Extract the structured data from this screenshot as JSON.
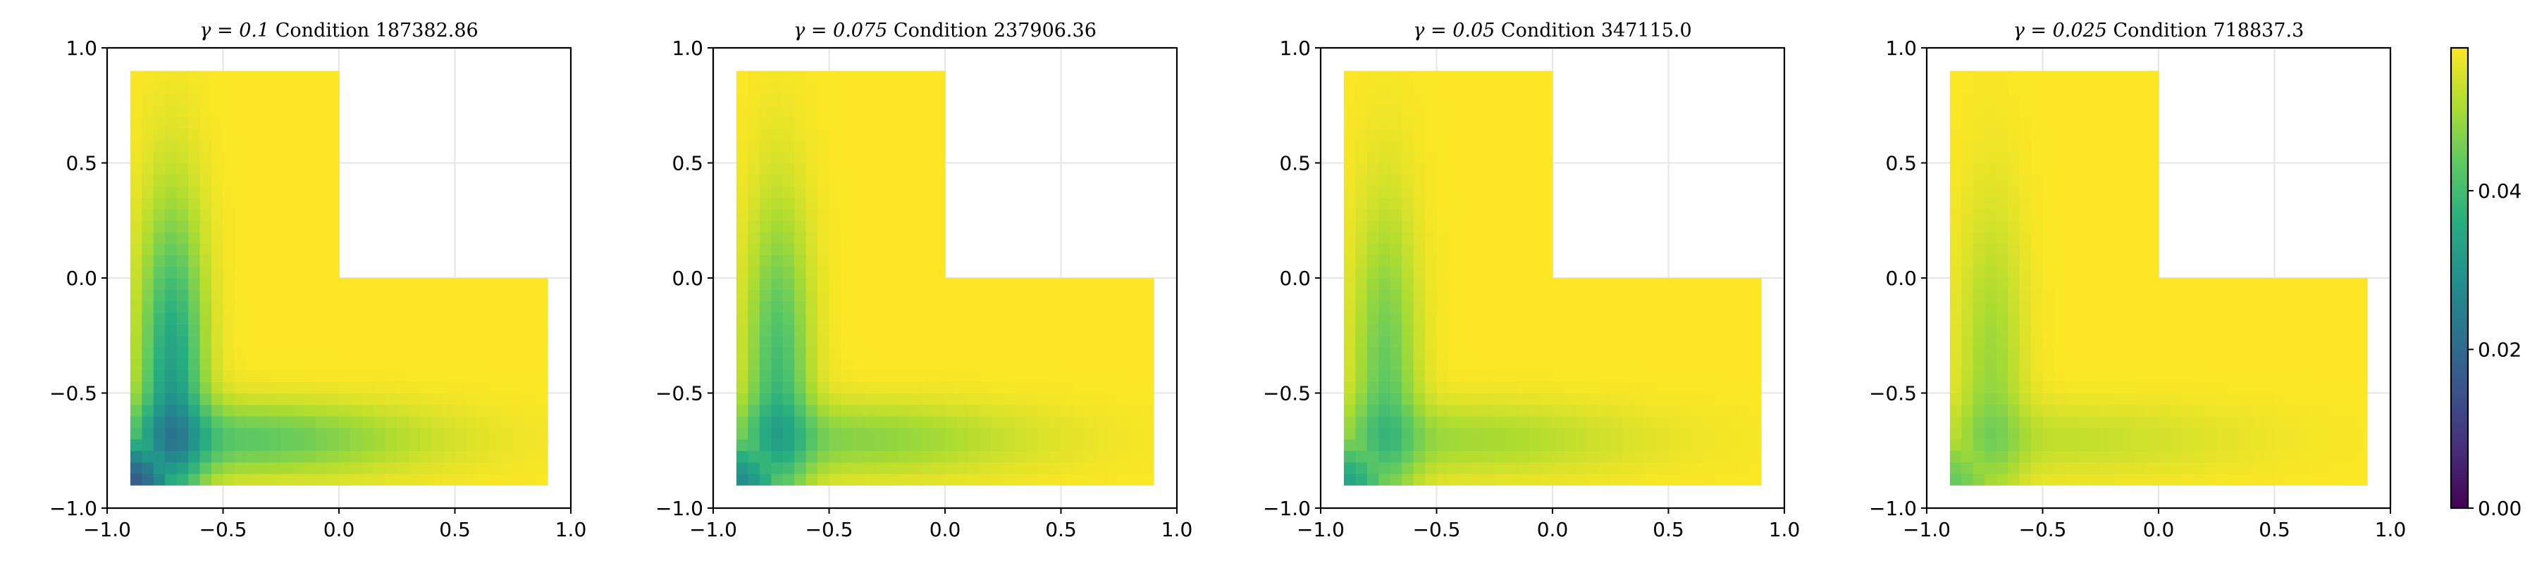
{
  "chart_data": {
    "type": "heatmap",
    "colormap": "viridis",
    "colormap_stops": [
      "#440154",
      "#472d7b",
      "#3b528b",
      "#2c728e",
      "#21918c",
      "#28ae80",
      "#5ec962",
      "#addc30",
      "#fde725"
    ],
    "domain_shape": "L-shaped region: [-0.9,0.9]x[-0.9,0] union [-0.9,0]x[0,0.9]",
    "domain": {
      "lower_rect": {
        "x": [
          -0.9,
          0.9
        ],
        "y": [
          -0.9,
          0.0
        ]
      },
      "upper_rect": {
        "x": [
          -0.9,
          0.0
        ],
        "y": [
          0.0,
          0.9
        ]
      }
    },
    "xlim": [
      -1.0,
      1.0
    ],
    "ylim": [
      -1.0,
      1.0
    ],
    "x_ticks": [
      -1.0,
      -0.5,
      0.0,
      0.5,
      1.0
    ],
    "y_ticks": [
      -1.0,
      -0.5,
      0.0,
      0.5,
      1.0
    ],
    "x_tick_labels": [
      "−1.0",
      "−0.5",
      "0.0",
      "0.5",
      "1.0"
    ],
    "y_tick_labels": [
      "−1.0",
      "−0.5",
      "0.0",
      "0.5",
      "1.0"
    ],
    "grid": true,
    "colorbar": {
      "range": [
        0.0,
        0.058
      ],
      "ticks": [
        0.0,
        0.02,
        0.04
      ],
      "tick_labels": [
        "0.00",
        "0.02",
        "0.04"
      ],
      "placement": "right"
    },
    "panels": [
      {
        "title_gamma": "γ = 0.1",
        "title_rest": " Condition 187382.86",
        "gamma": 0.1,
        "condition": 187382.86,
        "corner_min_value": 0.016,
        "arm_min_value": 0.033
      },
      {
        "title_gamma": "γ = 0.075",
        "title_rest": " Condition 237906.36",
        "gamma": 0.075,
        "condition": 237906.36,
        "corner_min_value": 0.028,
        "arm_min_value": 0.04
      },
      {
        "title_gamma": "γ = 0.05",
        "title_rest": " Condition 347115.0",
        "gamma": 0.05,
        "condition": 347115.0,
        "corner_min_value": 0.034,
        "arm_min_value": 0.044
      },
      {
        "title_gamma": "γ = 0.025",
        "title_rest": " Condition 718837.3",
        "gamma": 0.025,
        "condition": 718837.3,
        "corner_min_value": 0.044,
        "arm_min_value": 0.049
      }
    ]
  }
}
